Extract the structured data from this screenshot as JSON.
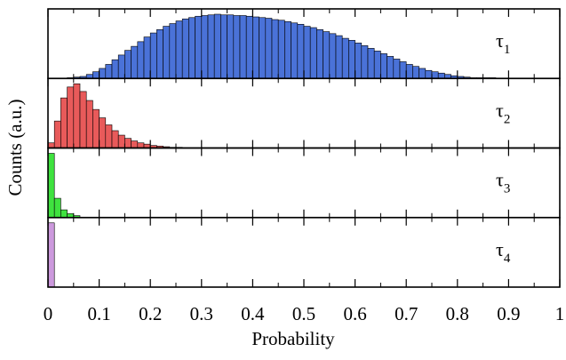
{
  "chart_data": {
    "type": "bar",
    "xlabel": "Probability",
    "ylabel": "Counts (a.u.)",
    "xlim": [
      0,
      1
    ],
    "x_ticks": [
      "0",
      "0.1",
      "0.2",
      "0.3",
      "0.4",
      "0.5",
      "0.6",
      "0.7",
      "0.8",
      "0.9",
      "1"
    ],
    "bin_width": 0.0125,
    "grid": false,
    "series": [
      {
        "name": "τ1",
        "label_base": "τ",
        "label_sub": "1",
        "color": "#4a72d8",
        "bin_start": 0,
        "values": [
          0,
          0,
          0,
          0.01,
          0.02,
          0.03,
          0.06,
          0.1,
          0.15,
          0.21,
          0.28,
          0.35,
          0.42,
          0.48,
          0.55,
          0.62,
          0.68,
          0.73,
          0.78,
          0.82,
          0.86,
          0.89,
          0.91,
          0.93,
          0.94,
          0.95,
          0.96,
          0.95,
          0.95,
          0.94,
          0.94,
          0.93,
          0.92,
          0.91,
          0.9,
          0.88,
          0.87,
          0.85,
          0.83,
          0.81,
          0.78,
          0.76,
          0.73,
          0.7,
          0.67,
          0.64,
          0.6,
          0.57,
          0.53,
          0.49,
          0.45,
          0.41,
          0.37,
          0.33,
          0.29,
          0.25,
          0.21,
          0.18,
          0.15,
          0.12,
          0.1,
          0.08,
          0.06,
          0.04,
          0.03,
          0.02,
          0.01,
          0.01,
          0.005,
          0.003
        ]
      },
      {
        "name": "τ2",
        "label_base": "τ",
        "label_sub": "2",
        "color": "#e85a5a",
        "bin_start": 0,
        "values": [
          0.08,
          0.42,
          0.78,
          0.95,
          1.0,
          0.88,
          0.74,
          0.6,
          0.47,
          0.36,
          0.27,
          0.2,
          0.15,
          0.11,
          0.08,
          0.06,
          0.04,
          0.03,
          0.02,
          0.01,
          0.005
        ]
      },
      {
        "name": "τ3",
        "label_base": "τ",
        "label_sub": "3",
        "color": "#3fe23f",
        "bin_start": 0,
        "values": [
          1.0,
          0.3,
          0.12,
          0.06,
          0.03
        ]
      },
      {
        "name": "τ4",
        "label_base": "τ",
        "label_sub": "4",
        "color": "#cc99dd",
        "bin_start": 0,
        "values": [
          1.0
        ]
      }
    ]
  }
}
